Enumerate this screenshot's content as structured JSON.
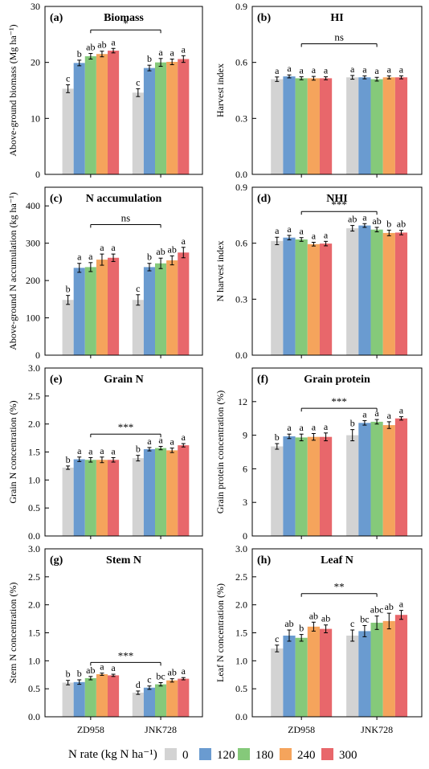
{
  "colors": [
    "#d3d3d3",
    "#6a9bd0",
    "#85c97a",
    "#f5a45c",
    "#e8676b"
  ],
  "legend": {
    "title": "N rate (kg N ha⁻¹)",
    "labels": [
      "0",
      "120",
      "180",
      "240",
      "300"
    ]
  },
  "chart_data": [
    {
      "type": "bar",
      "panel": "(a)",
      "title": "Biomass",
      "ylabel": "Above-ground biomass (Mg ha⁻¹)",
      "ylim": [
        0,
        30
      ],
      "yticks": [
        "0",
        "10",
        "20",
        "30"
      ],
      "ytick_values": [
        0,
        10,
        20,
        30
      ],
      "categories": [
        "ZD958",
        "JNK728"
      ],
      "series": [
        {
          "values": [
            15.3,
            14.6
          ],
          "errors": [
            0.7,
            0.7
          ],
          "letters": [
            "c",
            "c"
          ]
        },
        {
          "values": [
            19.9,
            19.0
          ],
          "errors": [
            0.5,
            0.5
          ],
          "letters": [
            "b",
            "b"
          ]
        },
        {
          "values": [
            21.1,
            20.0
          ],
          "errors": [
            0.5,
            0.7
          ],
          "letters": [
            "ab",
            "a"
          ]
        },
        {
          "values": [
            21.5,
            20.1
          ],
          "errors": [
            0.5,
            0.5
          ],
          "letters": [
            "ab",
            "a"
          ]
        },
        {
          "values": [
            22.1,
            20.6
          ],
          "errors": [
            0.4,
            0.6
          ],
          "letters": [
            "a",
            "a"
          ]
        }
      ],
      "significance": "*",
      "bracket_y": 25.8
    },
    {
      "type": "bar",
      "panel": "(b)",
      "title": "HI",
      "ylabel": "Harvest index",
      "ylim": [
        0,
        0.9
      ],
      "yticks": [
        "0.0",
        "0.3",
        "0.6",
        "0.9"
      ],
      "ytick_values": [
        0,
        0.3,
        0.6,
        0.9
      ],
      "categories": [
        "ZD958",
        "JNK728"
      ],
      "series": [
        {
          "values": [
            0.51,
            0.52
          ],
          "errors": [
            0.012,
            0.01
          ],
          "letters": [
            "a",
            "a"
          ]
        },
        {
          "values": [
            0.525,
            0.52
          ],
          "errors": [
            0.008,
            0.008
          ],
          "letters": [
            "a",
            "a"
          ]
        },
        {
          "values": [
            0.515,
            0.51
          ],
          "errors": [
            0.008,
            0.01
          ],
          "letters": [
            "a",
            "a"
          ]
        },
        {
          "values": [
            0.515,
            0.52
          ],
          "errors": [
            0.01,
            0.008
          ],
          "letters": [
            "a",
            "a"
          ]
        },
        {
          "values": [
            0.515,
            0.52
          ],
          "errors": [
            0.008,
            0.008
          ],
          "letters": [
            "a",
            "a"
          ]
        }
      ],
      "significance": "ns",
      "bracket_y": 0.7
    },
    {
      "type": "bar",
      "panel": "(c)",
      "title": "N accumulation",
      "ylabel": "Above-ground N accumulation (kg ha⁻¹)",
      "ylim": [
        0,
        450
      ],
      "yticks": [
        "0",
        "100",
        "200",
        "300",
        "400"
      ],
      "ytick_values": [
        0,
        100,
        200,
        300,
        400
      ],
      "categories": [
        "ZD958",
        "JNK728"
      ],
      "series": [
        {
          "values": [
            148,
            148
          ],
          "errors": [
            12,
            14
          ],
          "letters": [
            "b",
            "c"
          ]
        },
        {
          "values": [
            234,
            236
          ],
          "errors": [
            12,
            10
          ],
          "letters": [
            "a",
            "b"
          ]
        },
        {
          "values": [
            236,
            246
          ],
          "errors": [
            12,
            14
          ],
          "letters": [
            "a",
            "ab"
          ]
        },
        {
          "values": [
            256,
            254
          ],
          "errors": [
            15,
            12
          ],
          "letters": [
            "a",
            "ab"
          ]
        },
        {
          "values": [
            261,
            275
          ],
          "errors": [
            10,
            14
          ],
          "letters": [
            "a",
            "a"
          ]
        }
      ],
      "significance": "ns",
      "bracket_y": 350
    },
    {
      "type": "bar",
      "panel": "(d)",
      "title": "NHI",
      "ylabel": "N harvest index",
      "ylim": [
        0,
        0.9
      ],
      "yticks": [
        "0.0",
        "0.3",
        "0.6",
        "0.9"
      ],
      "ytick_values": [
        0,
        0.3,
        0.6,
        0.9
      ],
      "categories": [
        "ZD958",
        "JNK728"
      ],
      "series": [
        {
          "values": [
            0.612,
            0.68
          ],
          "errors": [
            0.02,
            0.015
          ],
          "letters": [
            "a",
            "ab"
          ]
        },
        {
          "values": [
            0.63,
            0.695
          ],
          "errors": [
            0.012,
            0.01
          ],
          "letters": [
            "a",
            "a"
          ]
        },
        {
          "values": [
            0.62,
            0.673
          ],
          "errors": [
            0.01,
            0.012
          ],
          "letters": [
            "a",
            "ab"
          ]
        },
        {
          "values": [
            0.595,
            0.655
          ],
          "errors": [
            0.01,
            0.015
          ],
          "letters": [
            "a",
            "b"
          ]
        },
        {
          "values": [
            0.598,
            0.657
          ],
          "errors": [
            0.012,
            0.012
          ],
          "letters": [
            "a",
            "ab"
          ]
        }
      ],
      "significance": "***",
      "bracket_y": 0.77
    },
    {
      "type": "bar",
      "panel": "(e)",
      "title": "Grain N",
      "ylabel": "Grain N concentration (%)",
      "ylim": [
        0,
        3.0
      ],
      "yticks": [
        "0.0",
        "0.5",
        "1.0",
        "1.5",
        "2.0",
        "2.5",
        "3.0"
      ],
      "ytick_values": [
        0,
        0.5,
        1.0,
        1.5,
        2.0,
        2.5,
        3.0
      ],
      "categories": [
        "ZD958",
        "JNK728"
      ],
      "series": [
        {
          "values": [
            1.22,
            1.39
          ],
          "errors": [
            0.03,
            0.05
          ],
          "letters": [
            "b",
            "b"
          ]
        },
        {
          "values": [
            1.37,
            1.55
          ],
          "errors": [
            0.04,
            0.03
          ],
          "letters": [
            "a",
            "a"
          ]
        },
        {
          "values": [
            1.36,
            1.57
          ],
          "errors": [
            0.04,
            0.03
          ],
          "letters": [
            "a",
            "a"
          ]
        },
        {
          "values": [
            1.36,
            1.53
          ],
          "errors": [
            0.05,
            0.04
          ],
          "letters": [
            "a",
            "a"
          ]
        },
        {
          "values": [
            1.36,
            1.62
          ],
          "errors": [
            0.04,
            0.03
          ],
          "letters": [
            "a",
            "a"
          ]
        }
      ],
      "significance": "***",
      "bracket_y": 1.82
    },
    {
      "type": "bar",
      "panel": "(f)",
      "title": "Grain protein",
      "ylabel": "Grain protein concentration (%)",
      "ylim": [
        0,
        15
      ],
      "yticks": [
        "0",
        "3",
        "6",
        "9",
        "12"
      ],
      "ytick_values": [
        0,
        3,
        6,
        9,
        12
      ],
      "categories": [
        "ZD958",
        "JNK728"
      ],
      "series": [
        {
          "values": [
            8.0,
            9.0
          ],
          "errors": [
            0.25,
            0.5
          ],
          "letters": [
            "b",
            "b"
          ]
        },
        {
          "values": [
            8.9,
            10.1
          ],
          "errors": [
            0.2,
            0.2
          ],
          "letters": [
            "a",
            "a"
          ]
        },
        {
          "values": [
            8.8,
            10.2
          ],
          "errors": [
            0.3,
            0.2
          ],
          "letters": [
            "a",
            "a"
          ]
        },
        {
          "values": [
            8.85,
            9.9
          ],
          "errors": [
            0.3,
            0.3
          ],
          "letters": [
            "a",
            "a"
          ]
        },
        {
          "values": [
            8.85,
            10.5
          ],
          "errors": [
            0.35,
            0.15
          ],
          "letters": [
            "a",
            "a"
          ]
        }
      ],
      "significance": "***",
      "bracket_y": 11.4
    },
    {
      "type": "bar",
      "panel": "(g)",
      "title": "Stem N",
      "ylabel": "Stem N concentration (%)",
      "ylim": [
        0,
        3.0
      ],
      "yticks": [
        "0.0",
        "0.5",
        "1.0",
        "1.5",
        "2.0",
        "2.5",
        "3.0"
      ],
      "ytick_values": [
        0,
        0.5,
        1.0,
        1.5,
        2.0,
        2.5,
        3.0
      ],
      "categories": [
        "ZD958",
        "JNK728"
      ],
      "series": [
        {
          "values": [
            0.61,
            0.43
          ],
          "errors": [
            0.04,
            0.03
          ],
          "letters": [
            "b",
            "d"
          ]
        },
        {
          "values": [
            0.62,
            0.52
          ],
          "errors": [
            0.04,
            0.03
          ],
          "letters": [
            "b",
            "c"
          ]
        },
        {
          "values": [
            0.69,
            0.58
          ],
          "errors": [
            0.03,
            0.03
          ],
          "letters": [
            "ab",
            "bc"
          ]
        },
        {
          "values": [
            0.76,
            0.65
          ],
          "errors": [
            0.02,
            0.03
          ],
          "letters": [
            "a",
            "ab"
          ]
        },
        {
          "values": [
            0.74,
            0.68
          ],
          "errors": [
            0.02,
            0.02
          ],
          "letters": [
            "a",
            "a"
          ]
        }
      ],
      "significance": "***",
      "bracket_y": 0.97
    },
    {
      "type": "bar",
      "panel": "(h)",
      "title": "Leaf N",
      "ylabel": "Leaf N concentration (%)",
      "ylim": [
        0,
        3.0
      ],
      "yticks": [
        "0.0",
        "0.5",
        "1.0",
        "1.5",
        "2.0",
        "2.5",
        "3.0"
      ],
      "ytick_values": [
        0,
        0.5,
        1.0,
        1.5,
        2.0,
        2.5,
        3.0
      ],
      "categories": [
        "ZD958",
        "JNK728"
      ],
      "series": [
        {
          "values": [
            1.22,
            1.45
          ],
          "errors": [
            0.06,
            0.1
          ],
          "letters": [
            "c",
            "c"
          ]
        },
        {
          "values": [
            1.45,
            1.53
          ],
          "errors": [
            0.1,
            0.1
          ],
          "letters": [
            "ab",
            "bc"
          ]
        },
        {
          "values": [
            1.41,
            1.68
          ],
          "errors": [
            0.06,
            0.12
          ],
          "letters": [
            "b",
            "abc"
          ]
        },
        {
          "values": [
            1.61,
            1.71
          ],
          "errors": [
            0.08,
            0.14
          ],
          "letters": [
            "ab",
            "ab"
          ]
        },
        {
          "values": [
            1.57,
            1.82
          ],
          "errors": [
            0.07,
            0.08
          ],
          "letters": [
            "ab",
            "a"
          ]
        }
      ],
      "significance": "**",
      "bracket_y": 2.2
    }
  ]
}
